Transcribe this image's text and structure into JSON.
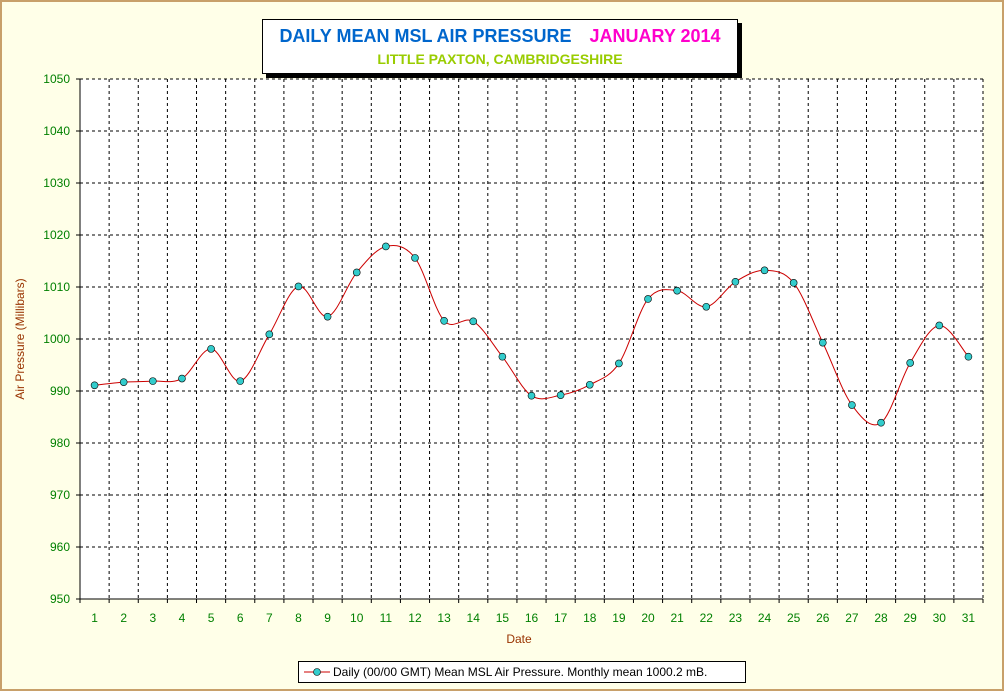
{
  "header": {
    "title": "DAILY MEAN MSL AIR PRESSURE",
    "month": "JANUARY 2014",
    "subtitle": "LITTLE PAXTON, CAMBRIDGESHIRE"
  },
  "colors": {
    "background": "#FFFFE8",
    "plot_background": "#FFFFFF",
    "line": "#CC0000",
    "marker_fill": "#33CCCC",
    "axis_tick_label": "#008000",
    "axis_title": "#993300",
    "title": "#0066CC",
    "month": "#FF00CC",
    "subtitle": "#99CC00"
  },
  "chart_data": {
    "type": "line",
    "title": "DAILY MEAN MSL AIR PRESSURE JANUARY 2014",
    "subtitle": "LITTLE PAXTON, CAMBRIDGESHIRE",
    "xlabel": "Date",
    "ylabel": "Air Pressure (Millibars)",
    "ylim": [
      950,
      1050
    ],
    "yticks": [
      950,
      960,
      970,
      980,
      990,
      1000,
      1010,
      1020,
      1030,
      1040,
      1050
    ],
    "grid": true,
    "legend_position": "bottom-center",
    "x": [
      1,
      2,
      3,
      4,
      5,
      6,
      7,
      8,
      9,
      10,
      11,
      12,
      13,
      14,
      15,
      16,
      17,
      18,
      19,
      20,
      21,
      22,
      23,
      24,
      25,
      26,
      27,
      28,
      29,
      30,
      31
    ],
    "series": [
      {
        "name": "Daily (00/00 GMT) Mean MSL Air Pressure. Monthly mean 1000.2 mB.",
        "values": [
          991.1,
          991.7,
          991.9,
          992.4,
          998.1,
          991.9,
          1000.9,
          1010.1,
          1004.3,
          1012.8,
          1017.8,
          1015.6,
          1003.5,
          1003.4,
          996.6,
          989.1,
          989.2,
          991.2,
          995.3,
          1007.7,
          1009.3,
          1006.2,
          1011.0,
          1013.2,
          1010.8,
          999.3,
          987.3,
          983.9,
          995.4,
          1002.6,
          996.6
        ]
      }
    ]
  }
}
